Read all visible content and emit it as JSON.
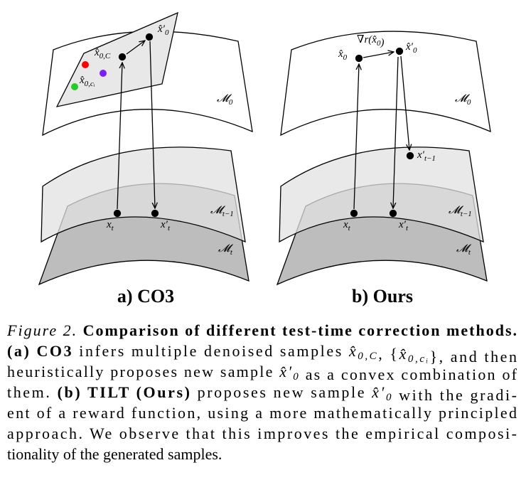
{
  "figure": {
    "panels": [
      {
        "title": "a) CO3",
        "labels": [
          {
            "base": "x̂",
            "sub": "0,C"
          },
          {
            "base": "x̂′",
            "sub": "0"
          },
          {
            "base": "x̂",
            "sub": "0,cᵢ"
          },
          {
            "base": "𝓜",
            "sub": "0"
          },
          {
            "base": "𝓜",
            "sub": "t−1"
          },
          {
            "base": "𝓜",
            "sub": "t"
          },
          {
            "base": "x",
            "sub": "t"
          },
          {
            "base": "x′",
            "sub": "t"
          }
        ]
      },
      {
        "title": "b) Ours",
        "labels": [
          {
            "base": "x̂",
            "sub": "0"
          },
          {
            "base": "x̂′",
            "sub": "0"
          },
          {
            "base": "∇r(x̂",
            "sub": "0",
            "tail": ")"
          },
          {
            "base": "𝓜",
            "sub": "0"
          },
          {
            "base": "x′",
            "sub": "t−1"
          },
          {
            "base": "𝓜",
            "sub": "t−1"
          },
          {
            "base": "𝓜",
            "sub": "t"
          },
          {
            "base": "x",
            "sub": "t"
          },
          {
            "base": "x′",
            "sub": "t"
          }
        ]
      }
    ],
    "caption": [
      [
        {
          "text": "Figure 2.",
          "style": "italic"
        },
        {
          "text": " Comparison of different test-time correction methods.",
          "style": "bold"
        }
      ],
      [
        {
          "text": "(a) CO3",
          "style": "bold"
        },
        {
          "text": " infers multiple denoised samples ",
          "style": "plain"
        },
        {
          "base": "x̂",
          "sub": "0,C",
          "style": "math"
        },
        {
          "text": ", {",
          "style": "plain"
        },
        {
          "base": "x̂",
          "sub": "0,cᵢ",
          "style": "math"
        },
        {
          "text": "}, and then",
          "style": "plain"
        }
      ],
      [
        {
          "text": "heuristically proposes new sample ",
          "style": "plain"
        },
        {
          "base": "x̂′",
          "sub": "0",
          "style": "math"
        },
        {
          "text": " as a convex combination of",
          "style": "plain"
        }
      ],
      [
        {
          "text": "them. ",
          "style": "plain"
        },
        {
          "text": "(b) TILT (Ours)",
          "style": "bold"
        },
        {
          "text": " proposes new sample ",
          "style": "plain"
        },
        {
          "base": "x̂′",
          "sub": "0",
          "style": "math"
        },
        {
          "text": " with the gradi-",
          "style": "plain"
        }
      ],
      [
        {
          "text": "ent of a reward function, using a more mathematically principled",
          "style": "plain"
        }
      ],
      [
        {
          "text": "approach. We observe that this improves the empirical composi-",
          "style": "plain"
        }
      ],
      [
        {
          "text": "tionality of the generated samples.",
          "style": "plain"
        }
      ]
    ]
  }
}
